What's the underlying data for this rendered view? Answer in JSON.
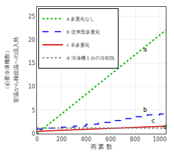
{
  "chart_data": {
    "type": "line",
    "xlabel": "画 素 数",
    "ylabel": [
      "室温から極低温への流入熱",
      "（必要冷凍機数）"
    ],
    "xlim": [
      0,
      1050
    ],
    "xticks": [
      0,
      200,
      400,
      600,
      800,
      1000
    ],
    "ylim": [
      0,
      27
    ],
    "yticks": [
      0,
      5,
      10,
      15,
      20,
      25
    ],
    "grid": true,
    "legend": "upper left",
    "series": [
      {
        "name": "a 多重化なし",
        "color": "#00bb00",
        "line_style": "dotted",
        "x": [
          0,
          1050
        ],
        "values": [
          0,
          22.05
        ]
      },
      {
        "name": "b 従来型多重化",
        "color": "#0000ee",
        "line_style": "dashed",
        "x": [
          0,
          100,
          100,
          200,
          200,
          300,
          300,
          400,
          400,
          500,
          500,
          600,
          600,
          700,
          700,
          800,
          800,
          900,
          900,
          1000,
          1000,
          1050
        ],
        "values": [
          1.0,
          1.0,
          1.2,
          1.2,
          1.4,
          1.4,
          1.6,
          1.6,
          2.0,
          2.0,
          2.4,
          2.4,
          2.8,
          2.8,
          3.2,
          3.2,
          3.6,
          3.6,
          4.0,
          4.0,
          4.2,
          4.2
        ]
      },
      {
        "name": "c 本多重化",
        "color": "#cc0000",
        "line_style": "solid",
        "x": [
          0,
          1050
        ],
        "values": [
          0.5,
          1.6
        ]
      },
      {
        "name": "d 冷凍機１台の冷却熱",
        "color": "#888888",
        "line_style": "dotted",
        "type": "hline",
        "values": [
          1.2
        ]
      }
    ],
    "annotations": [
      {
        "text": "a",
        "x": 855,
        "y": 17.0
      },
      {
        "text": "b",
        "x": 855,
        "y": 4.1
      },
      {
        "text": "c",
        "x": 920,
        "y": 1.75
      },
      {
        "text": "d",
        "x": 1015,
        "y": 0.45
      }
    ]
  }
}
